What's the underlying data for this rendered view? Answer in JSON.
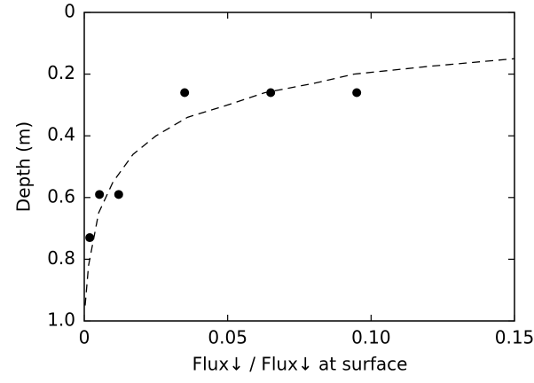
{
  "chart_data": {
    "type": "scatter",
    "xlabel": "Flux↓ / Flux↓ at surface",
    "ylabel": "Depth (m)",
    "xlim": [
      0,
      0.15
    ],
    "xticks": [
      0,
      0.05,
      {
        "value": 0.1,
        "label": "0.10"
      },
      0.15
    ],
    "ylim": [
      1,
      0
    ],
    "yticks": [
      0,
      0.2,
      0.4,
      0.6,
      0.8,
      {
        "value": 1,
        "label": "1.0"
      }
    ],
    "series": [
      {
        "type": "scatter",
        "color": "#000000",
        "x": [
          0.0019,
          0.0053,
          0.012,
          0.035,
          0.065,
          0.095
        ],
        "values": [
          0.73,
          0.59,
          0.59,
          0.26,
          0.26,
          0.26
        ]
      },
      {
        "type": "line",
        "color": "#000000",
        "dashed": true,
        "x": [
          0.0003,
          0.0015,
          0.005,
          0.01,
          0.017,
          0.025,
          0.036,
          0.05,
          0.063,
          0.08,
          0.094,
          0.12,
          0.15
        ],
        "values": [
          0.95,
          0.82,
          0.65,
          0.55,
          0.46,
          0.4,
          0.34,
          0.3,
          0.26,
          0.23,
          0.2,
          0.175,
          0.15
        ]
      }
    ]
  }
}
